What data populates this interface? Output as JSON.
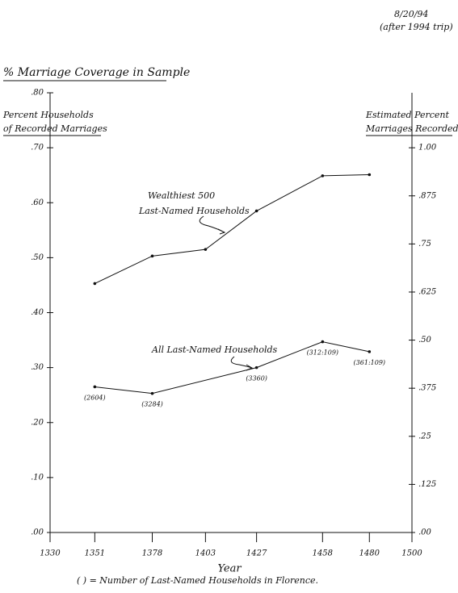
{
  "chart_data": {
    "type": "line",
    "title": "% Marriage Coverage in Sample",
    "date_note": "8/20/94",
    "date_note_2": "(after 1994 trip)",
    "y_label": [
      "Percent  Households",
      "of Recorded Marriages"
    ],
    "y2_label": [
      "Estimated Percent",
      "Marriages Recorded"
    ],
    "x_label": "Year",
    "footnote": "(     ) = Number of Last-Named Households in Florence.",
    "annotations": [
      {
        "series": 0,
        "text": [
          "Wealthiest 500",
          "Last-Named Households"
        ]
      },
      {
        "series": 1,
        "text": [
          "All Last-Named Households"
        ]
      }
    ],
    "series": [
      {
        "name": "Wealthiest 500 Last-Named Households",
        "color": "#111111",
        "x": [
          1351,
          1378,
          1403,
          1427,
          1458,
          1480
        ],
        "values": [
          0.453,
          0.503,
          0.515,
          0.585,
          0.649,
          0.651
        ]
      },
      {
        "name": "All Last-Named Households",
        "color": "#111111",
        "x": [
          1351,
          1378,
          1427,
          1458,
          1480
        ],
        "values": [
          0.265,
          0.253,
          0.3,
          0.347,
          0.329
        ],
        "point_labels": [
          "(2604)",
          "(3284)",
          "(3360)",
          "(312:109)",
          "(361:109)"
        ]
      }
    ],
    "xlim": [
      1330,
      1500
    ],
    "xticks": [
      1330,
      1351,
      1378,
      1403,
      1427,
      1458,
      1480,
      1500
    ],
    "ylim": [
      0,
      0.8
    ],
    "yticks": [
      {
        "value": 0,
        "label": ".00"
      },
      {
        "value": 0.1,
        "label": ".10"
      },
      {
        "value": 0.2,
        "label": ".20"
      },
      {
        "value": 0.3,
        "label": ".30"
      },
      {
        "value": 0.4,
        "label": ".40"
      },
      {
        "value": 0.5,
        "label": ".50"
      },
      {
        "value": 0.6,
        "label": ".60"
      },
      {
        "value": 0.7,
        "label": ".70"
      },
      {
        "value": 0.8,
        "label": ".80"
      }
    ],
    "y2lim": [
      0,
      1.1429
    ],
    "y2ticks": [
      {
        "value": 0,
        "label": ".00"
      },
      {
        "value": 0.125,
        "label": ".125"
      },
      {
        "value": 0.25,
        "label": ".25"
      },
      {
        "value": 0.375,
        "label": ".375"
      },
      {
        "value": 0.5,
        "label": ".50"
      },
      {
        "value": 0.625,
        "label": ".625"
      },
      {
        "value": 0.75,
        "label": ".75"
      },
      {
        "value": 0.875,
        "label": ".875"
      },
      {
        "value": 1,
        "label": "1.00"
      }
    ],
    "grid": false
  }
}
